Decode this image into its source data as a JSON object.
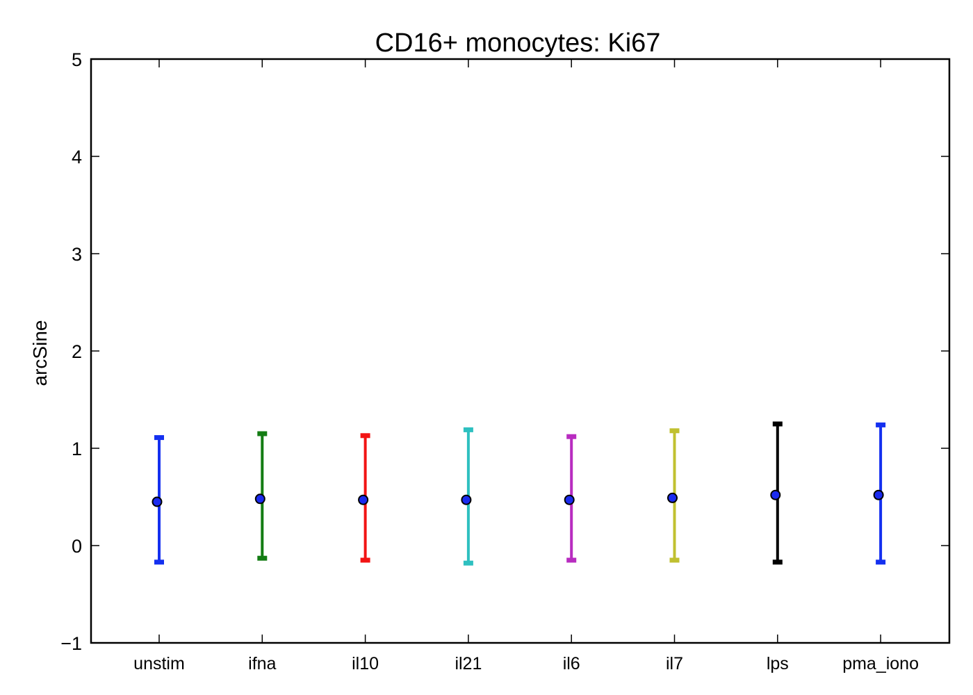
{
  "chart_data": {
    "type": "errorbar",
    "title": "CD16+ monocytes: Ki67",
    "xlabel": "",
    "ylabel": "arcSine",
    "ylim": [
      -1,
      5
    ],
    "yticks": [
      -1,
      0,
      1,
      2,
      3,
      4,
      5
    ],
    "ytick_labels": [
      "−1",
      "0",
      "1",
      "2",
      "3",
      "4",
      "5"
    ],
    "grid": false,
    "categories": [
      "unstim",
      "ifna",
      "il10",
      "il21",
      "il6",
      "il7",
      "lps",
      "pma_iono"
    ],
    "means": [
      0.45,
      0.48,
      0.47,
      0.47,
      0.47,
      0.49,
      0.52,
      0.52
    ],
    "upper": [
      1.11,
      1.15,
      1.13,
      1.19,
      1.12,
      1.18,
      1.25,
      1.24
    ],
    "lower": [
      -0.17,
      -0.13,
      -0.15,
      -0.18,
      -0.15,
      -0.15,
      -0.17,
      -0.17
    ],
    "bar_colors": [
      "#1430f0",
      "#137c13",
      "#f21414",
      "#2ec0c0",
      "#b82cc0",
      "#c0c030",
      "#000000",
      "#1430f0"
    ],
    "marker_color": "#1b2bef"
  }
}
